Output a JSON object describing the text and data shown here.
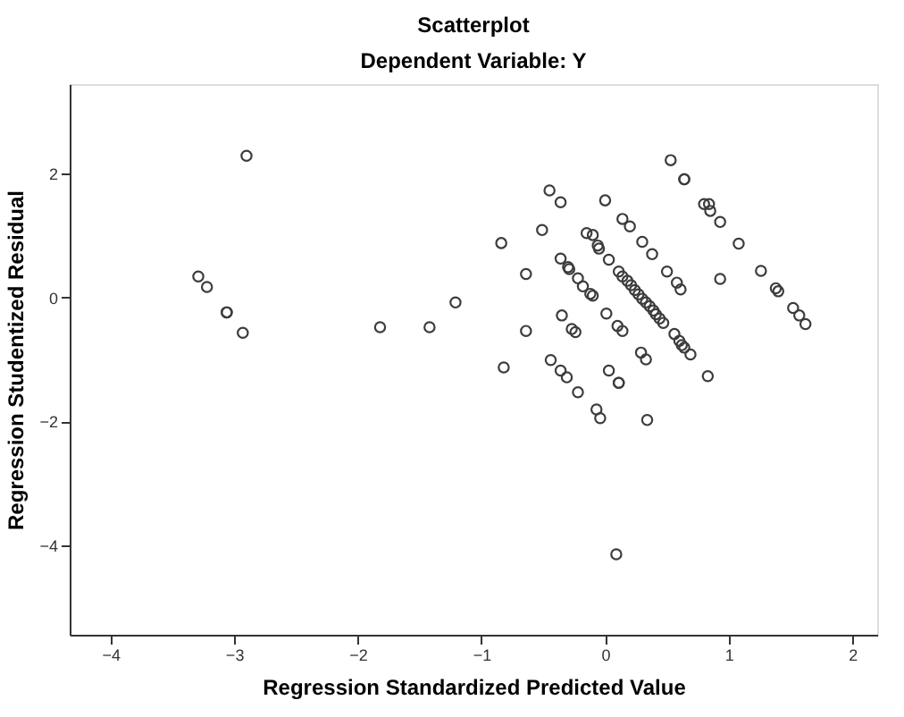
{
  "chart_data": {
    "type": "scatter",
    "title": "Scatterplot",
    "subtitle": "Dependent Variable: Y",
    "xlabel": "Regression Standardized Predicted Value",
    "ylabel": "Regression Studentized Residual",
    "xlim": [
      -4.33,
      2.2
    ],
    "ylim": [
      -5.45,
      3.45
    ],
    "xticks": [
      -4,
      -3,
      -2,
      -1,
      0,
      1,
      2
    ],
    "yticks": [
      -4,
      -2,
      0,
      2
    ],
    "grid": false,
    "legend": false,
    "marker": "circle",
    "series": [
      {
        "color": "#3c3c3c",
        "x": [
          -2.9,
          -3.29,
          -3.22,
          -3.06,
          -3.06,
          -2.93,
          -1.82,
          -1.42,
          -1.21,
          0.53,
          0.64,
          0.64,
          -0.45,
          -0.36,
          0.0,
          0.8,
          0.84,
          0.85,
          0.93,
          0.14,
          0.2,
          -0.51,
          -0.84,
          -0.15,
          -0.1,
          -0.06,
          -0.05,
          0.3,
          0.38,
          1.08,
          0.03,
          -0.36,
          -0.3,
          -0.29,
          -0.64,
          -0.22,
          -0.18,
          -0.12,
          -0.1,
          0.5,
          0.58,
          0.61,
          0.93,
          1.26,
          1.38,
          1.4,
          1.52,
          1.57,
          1.62,
          0.11,
          0.14,
          0.18,
          0.21,
          0.24,
          0.27,
          0.3,
          0.33,
          0.36,
          0.39,
          0.41,
          0.44,
          0.47,
          0.56,
          0.6,
          0.62,
          0.64,
          0.69,
          -0.35,
          -0.27,
          -0.24,
          -0.64,
          0.01,
          0.1,
          0.14,
          0.29,
          0.33,
          -0.82,
          -0.44,
          -0.36,
          -0.31,
          -0.22,
          0.03,
          0.11,
          0.11,
          0.83,
          -0.07,
          -0.04,
          0.34,
          0.09
        ],
        "values": [
          2.29,
          0.34,
          0.17,
          -0.24,
          -0.24,
          -0.57,
          -0.48,
          -0.48,
          -0.08,
          2.22,
          1.91,
          1.91,
          1.73,
          1.54,
          1.57,
          1.51,
          1.51,
          1.4,
          1.22,
          1.27,
          1.15,
          1.09,
          0.88,
          1.04,
          1.01,
          0.84,
          0.79,
          0.9,
          0.7,
          0.87,
          0.61,
          0.63,
          0.49,
          0.46,
          0.38,
          0.31,
          0.18,
          0.06,
          0.03,
          0.42,
          0.24,
          0.13,
          0.3,
          0.43,
          0.15,
          0.1,
          -0.17,
          -0.29,
          -0.43,
          0.42,
          0.34,
          0.27,
          0.2,
          0.12,
          0.05,
          -0.02,
          -0.08,
          -0.14,
          -0.21,
          -0.27,
          -0.34,
          -0.41,
          -0.59,
          -0.7,
          -0.77,
          -0.81,
          -0.92,
          -0.29,
          -0.51,
          -0.56,
          -0.54,
          -0.26,
          -0.46,
          -0.54,
          -0.89,
          -1.0,
          -1.13,
          -1.01,
          -1.18,
          -1.29,
          -1.53,
          -1.18,
          -1.38,
          -1.38,
          -1.27,
          -1.81,
          -1.95,
          -1.98,
          -4.15
        ]
      }
    ]
  }
}
